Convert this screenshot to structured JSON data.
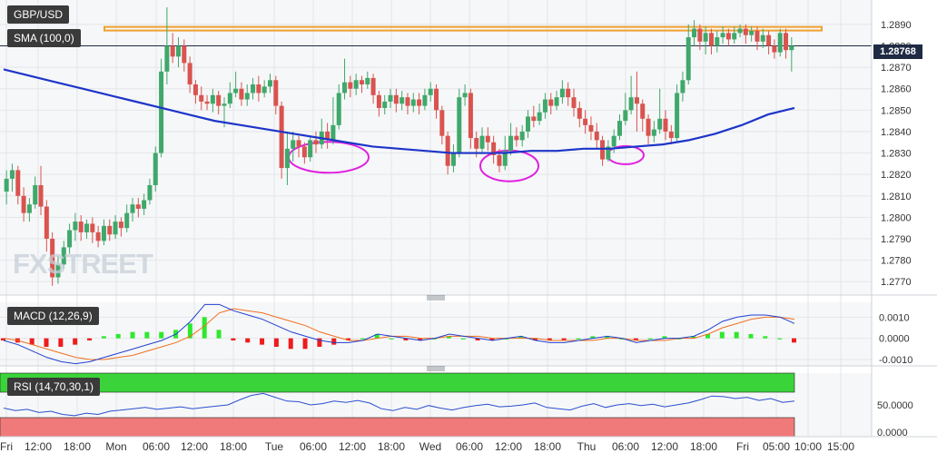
{
  "symbol": "GBP/USD",
  "indicator_sma": "SMA (100,0)",
  "indicator_macd": "MACD (12,26,9)",
  "indicator_rsi": "RSI (14,70,30,1)",
  "last_price": "1.28768",
  "watermark": "FXSTREET",
  "colors": {
    "up": "#3fa86b",
    "down": "#d9534f",
    "sma": "#1d35c9",
    "resistance": "#f0a030",
    "circles": "#e020e0",
    "macd_line": "#2040d0",
    "signal_line": "#f07020",
    "hist_up": "#2ee82e",
    "hist_down": "#ee1c1c",
    "rsi_line": "#2a4fd0",
    "rsi_over": "#3ad33a",
    "rsi_under": "#f07a7a"
  },
  "time_axis": [
    "Fri",
    "12:00",
    "18:00",
    "Mon",
    "06:00",
    "12:00",
    "18:00",
    "Tue",
    "06:00",
    "12:00",
    "18:00",
    "Wed",
    "06:00",
    "12:00",
    "18:00",
    "Thu",
    "06:00",
    "12:00",
    "18:00",
    "Fri",
    "05:00",
    "10:00",
    "15:00"
  ],
  "chart_data": [
    {
      "type": "candlestick",
      "title": "GBP/USD",
      "ylim": [
        1.2765,
        1.2898
      ],
      "y_ticks": [
        "1.2890",
        "1.2880",
        "1.2870",
        "1.2860",
        "1.2850",
        "1.2840",
        "1.2830",
        "1.2820",
        "1.2810",
        "1.2800",
        "1.2790",
        "1.2780",
        "1.2770"
      ],
      "series": [
        {
          "name": "SMA (100,0)",
          "values": [
            1.2869,
            1.2866,
            1.2863,
            1.286,
            1.2857,
            1.2854,
            1.2851,
            1.2848,
            1.2845,
            1.2843,
            1.2841,
            1.2839,
            1.2837,
            1.2835,
            1.2833,
            1.2832,
            1.2831,
            1.283,
            1.283,
            1.283,
            1.2831,
            1.2831,
            1.2832,
            1.2832,
            1.2833,
            1.2834,
            1.2836,
            1.2839,
            1.2843,
            1.2848,
            1.2851
          ]
        }
      ],
      "candles": [
        [
          1.2812,
          1.2818,
          1.2806,
          1.2822
        ],
        [
          1.2818,
          1.2822,
          1.2812,
          1.2825
        ],
        [
          1.2822,
          1.281,
          1.2806,
          1.2824
        ],
        [
          1.281,
          1.2802,
          1.2798,
          1.2814
        ],
        [
          1.2802,
          1.2806,
          1.2798,
          1.2809
        ],
        [
          1.2806,
          1.2815,
          1.2804,
          1.2819
        ],
        [
          1.2815,
          1.2805,
          1.2801,
          1.2824
        ],
        [
          1.2805,
          1.279,
          1.2784,
          1.2808
        ],
        [
          1.279,
          1.2772,
          1.2768,
          1.2793
        ],
        [
          1.2772,
          1.2778,
          1.2769,
          1.2782
        ],
        [
          1.2778,
          1.2786,
          1.2776,
          1.2789
        ],
        [
          1.2786,
          1.2794,
          1.2783,
          1.2797
        ],
        [
          1.2794,
          1.2798,
          1.2789,
          1.2802
        ],
        [
          1.2798,
          1.2793,
          1.2789,
          1.2801
        ],
        [
          1.2793,
          1.2797,
          1.279,
          1.2799
        ],
        [
          1.2797,
          1.2793,
          1.2788,
          1.28
        ],
        [
          1.2793,
          1.2789,
          1.2786,
          1.2796
        ],
        [
          1.2789,
          1.2796,
          1.2787,
          1.2799
        ],
        [
          1.2796,
          1.2792,
          1.2789,
          1.2799
        ],
        [
          1.2792,
          1.2798,
          1.279,
          1.2801
        ],
        [
          1.2798,
          1.2795,
          1.2791,
          1.28
        ],
        [
          1.2795,
          1.2802,
          1.2793,
          1.2806
        ],
        [
          1.2802,
          1.2806,
          1.2798,
          1.2809
        ],
        [
          1.2806,
          1.2804,
          1.28,
          1.2809
        ],
        [
          1.2804,
          1.2808,
          1.2801,
          1.2811
        ],
        [
          1.2808,
          1.2815,
          1.2806,
          1.2818
        ],
        [
          1.2815,
          1.283,
          1.2812,
          1.2833
        ],
        [
          1.283,
          1.2868,
          1.2828,
          1.2874
        ],
        [
          1.2868,
          1.288,
          1.2862,
          1.2898
        ],
        [
          1.288,
          1.2875,
          1.2872,
          1.2886
        ],
        [
          1.2875,
          1.288,
          1.287,
          1.2884
        ],
        [
          1.288,
          1.2872,
          1.2868,
          1.2883
        ],
        [
          1.2872,
          1.2862,
          1.2858,
          1.2875
        ],
        [
          1.2862,
          1.2857,
          1.2853,
          1.2864
        ],
        [
          1.2857,
          1.2854,
          1.285,
          1.2861
        ],
        [
          1.2854,
          1.2853,
          1.285,
          1.2857
        ],
        [
          1.2853,
          1.2857,
          1.2849,
          1.286
        ],
        [
          1.2857,
          1.2852,
          1.2848,
          1.2859
        ],
        [
          1.2852,
          1.2853,
          1.2842,
          1.2856
        ],
        [
          1.2853,
          1.2858,
          1.2851,
          1.2863
        ],
        [
          1.2858,
          1.286,
          1.2856,
          1.2868
        ],
        [
          1.286,
          1.2855,
          1.2852,
          1.2863
        ],
        [
          1.2855,
          1.2858,
          1.2852,
          1.2862
        ],
        [
          1.2858,
          1.2862,
          1.2855,
          1.2865
        ],
        [
          1.2862,
          1.2858,
          1.2854,
          1.2866
        ],
        [
          1.2858,
          1.2861,
          1.2856,
          1.2864
        ],
        [
          1.2861,
          1.2864,
          1.2858,
          1.2867
        ],
        [
          1.2864,
          1.2852,
          1.2848,
          1.2866
        ],
        [
          1.2852,
          1.2823,
          1.2818,
          1.2854
        ],
        [
          1.2823,
          1.2832,
          1.2815,
          1.284
        ],
        [
          1.2832,
          1.2836,
          1.2826,
          1.284
        ],
        [
          1.2836,
          1.2833,
          1.2828,
          1.2838
        ],
        [
          1.2833,
          1.2828,
          1.2825,
          1.2835
        ],
        [
          1.2828,
          1.2836,
          1.2826,
          1.2838
        ],
        [
          1.2836,
          1.2834,
          1.283,
          1.284
        ],
        [
          1.2834,
          1.284,
          1.2832,
          1.2846
        ],
        [
          1.284,
          1.2836,
          1.2832,
          1.2844
        ],
        [
          1.2836,
          1.2843,
          1.2834,
          1.2856
        ],
        [
          1.2843,
          1.2858,
          1.2841,
          1.2862
        ],
        [
          1.2858,
          1.2863,
          1.2855,
          1.2874
        ],
        [
          1.2863,
          1.286,
          1.2856,
          1.2866
        ],
        [
          1.286,
          1.2864,
          1.2857,
          1.2867
        ],
        [
          1.2864,
          1.2862,
          1.2858,
          1.2866
        ],
        [
          1.2862,
          1.2865,
          1.286,
          1.2868
        ],
        [
          1.2865,
          1.2857,
          1.2853,
          1.2867
        ],
        [
          1.2857,
          1.2851,
          1.2847,
          1.2859
        ],
        [
          1.2851,
          1.2854,
          1.2848,
          1.2857
        ],
        [
          1.2854,
          1.2857,
          1.2851,
          1.286
        ],
        [
          1.2857,
          1.2853,
          1.2849,
          1.286
        ],
        [
          1.2853,
          1.2856,
          1.285,
          1.2859
        ],
        [
          1.2856,
          1.2852,
          1.2848,
          1.2858
        ],
        [
          1.2852,
          1.2855,
          1.2849,
          1.2858
        ],
        [
          1.2855,
          1.2852,
          1.2848,
          1.2858
        ],
        [
          1.2852,
          1.2857,
          1.285,
          1.286
        ],
        [
          1.2857,
          1.286,
          1.2854,
          1.2863
        ],
        [
          1.286,
          1.285,
          1.2846,
          1.2862
        ],
        [
          1.285,
          1.2838,
          1.2834,
          1.2852
        ],
        [
          1.2838,
          1.2824,
          1.282,
          1.284
        ],
        [
          1.2824,
          1.283,
          1.2821,
          1.2834
        ],
        [
          1.283,
          1.2856,
          1.2828,
          1.286
        ],
        [
          1.2856,
          1.2858,
          1.2852,
          1.2862
        ],
        [
          1.2858,
          1.2837,
          1.2832,
          1.286
        ],
        [
          1.2837,
          1.2832,
          1.2828,
          1.284
        ],
        [
          1.2832,
          1.2838,
          1.283,
          1.2842
        ],
        [
          1.2838,
          1.2835,
          1.2831,
          1.2842
        ],
        [
          1.2835,
          1.2829,
          1.2825,
          1.2838
        ],
        [
          1.2829,
          1.2824,
          1.2821,
          1.2832
        ],
        [
          1.2824,
          1.2831,
          1.2822,
          1.2838
        ],
        [
          1.2831,
          1.2838,
          1.2829,
          1.2844
        ],
        [
          1.2838,
          1.2836,
          1.2833,
          1.2842
        ],
        [
          1.2836,
          1.284,
          1.2833,
          1.2843
        ],
        [
          1.284,
          1.2847,
          1.2837,
          1.285
        ],
        [
          1.2847,
          1.2845,
          1.2842,
          1.2852
        ],
        [
          1.2845,
          1.2849,
          1.2843,
          1.2853
        ],
        [
          1.2849,
          1.2855,
          1.2846,
          1.2858
        ],
        [
          1.2855,
          1.2852,
          1.2848,
          1.2858
        ],
        [
          1.2852,
          1.2856,
          1.285,
          1.2859
        ],
        [
          1.2856,
          1.286,
          1.2853,
          1.2864
        ],
        [
          1.286,
          1.2856,
          1.2852,
          1.2863
        ],
        [
          1.2856,
          1.2851,
          1.2847,
          1.286
        ],
        [
          1.2851,
          1.2846,
          1.2842,
          1.2854
        ],
        [
          1.2846,
          1.2843,
          1.2839,
          1.285
        ],
        [
          1.2843,
          1.284,
          1.2836,
          1.2847
        ],
        [
          1.284,
          1.2836,
          1.2832,
          1.2844
        ],
        [
          1.2836,
          1.2827,
          1.2824,
          1.2838
        ],
        [
          1.2827,
          1.2833,
          1.2826,
          1.2836
        ],
        [
          1.2833,
          1.2838,
          1.283,
          1.2841
        ],
        [
          1.2838,
          1.2845,
          1.2836,
          1.2848
        ],
        [
          1.2845,
          1.285,
          1.2843,
          1.2858
        ],
        [
          1.285,
          1.2856,
          1.2848,
          1.2866
        ],
        [
          1.2856,
          1.2853,
          1.284,
          1.2868
        ],
        [
          1.2853,
          1.2846,
          1.284,
          1.2855
        ],
        [
          1.2846,
          1.2838,
          1.2834,
          1.2848
        ],
        [
          1.2838,
          1.2841,
          1.2835,
          1.2845
        ],
        [
          1.2841,
          1.2846,
          1.2839,
          1.286
        ],
        [
          1.2846,
          1.284,
          1.2836,
          1.285
        ],
        [
          1.284,
          1.2837,
          1.2834,
          1.2843
        ],
        [
          1.2837,
          1.2858,
          1.2835,
          1.2862
        ],
        [
          1.2858,
          1.2864,
          1.2854,
          1.2868
        ],
        [
          1.2864,
          1.2884,
          1.2862,
          1.289
        ],
        [
          1.2884,
          1.2888,
          1.288,
          1.2892
        ],
        [
          1.2888,
          1.2882,
          1.2878,
          1.289
        ],
        [
          1.2882,
          1.2886,
          1.2876,
          1.2889
        ],
        [
          1.2886,
          1.288,
          1.2876,
          1.2888
        ],
        [
          1.288,
          1.2884,
          1.2877,
          1.2887
        ],
        [
          1.2884,
          1.2886,
          1.2881,
          1.2889
        ],
        [
          1.2886,
          1.2883,
          1.288,
          1.2888
        ],
        [
          1.2883,
          1.2886,
          1.2881,
          1.2889
        ],
        [
          1.2886,
          1.2888,
          1.2884,
          1.289
        ],
        [
          1.2888,
          1.2885,
          1.2881,
          1.289
        ],
        [
          1.2885,
          1.2887,
          1.2882,
          1.2889
        ],
        [
          1.2887,
          1.2882,
          1.2878,
          1.2889
        ],
        [
          1.2882,
          1.2885,
          1.2879,
          1.2888
        ],
        [
          1.2885,
          1.288,
          1.2876,
          1.2887
        ],
        [
          1.288,
          1.2877,
          1.2874,
          1.2883
        ],
        [
          1.2877,
          1.2886,
          1.2875,
          1.2888
        ],
        [
          1.2886,
          1.2878,
          1.2874,
          1.2888
        ],
        [
          1.2878,
          1.288,
          1.2868,
          1.2884
        ]
      ],
      "resistance_level": 1.2888,
      "marked_lows": [
        1.2828,
        1.2824,
        1.2829
      ]
    },
    {
      "type": "bar",
      "title": "MACD (12,26,9)",
      "ylim": [
        -0.0013,
        0.0017
      ],
      "y_ticks": [
        "0.0010",
        "0.0000",
        "-0.0010"
      ],
      "series": [
        {
          "name": "MACD",
          "values": [
            -0.0001,
            -0.0003,
            -0.0006,
            -0.0009,
            -0.0011,
            -0.0012,
            -0.0011,
            -0.0009,
            -0.0007,
            -0.0005,
            -0.0003,
            -0.0001,
            0.0002,
            0.0008,
            0.0016,
            0.0016,
            0.0013,
            0.0011,
            0.0009,
            0.0006,
            0.0003,
            0.0001,
            -0.0001,
            -0.0002,
            -0.0002,
            -0.0001,
            0.0002,
            0.0001,
            0.0,
            -0.0001,
            0.0,
            0.0002,
            0.0001,
            0.0,
            -0.0001,
            0.0,
            0.0001,
            -0.0001,
            -0.0002,
            -0.0002,
            -0.0001,
            0.0,
            0.0001,
            0.0,
            -0.0002,
            -0.0001,
            0.0,
            0.0,
            0.0001,
            0.0004,
            0.0008,
            0.001,
            0.0011,
            0.0011,
            0.001,
            0.0007
          ]
        },
        {
          "name": "Signal",
          "values": [
            0.0,
            -0.0001,
            -0.0003,
            -0.0005,
            -0.0007,
            -0.0009,
            -0.001,
            -0.001,
            -0.0009,
            -0.0008,
            -0.0006,
            -0.0004,
            -0.0002,
            0.0001,
            0.0006,
            0.0012,
            0.0014,
            0.0013,
            0.0012,
            0.001,
            0.0008,
            0.0006,
            0.0003,
            0.0001,
            -0.0001,
            -0.0001,
            0.0,
            0.0001,
            0.0001,
            0.0,
            0.0,
            0.0001,
            0.0001,
            0.0001,
            0.0,
            0.0,
            0.0,
            0.0,
            -0.0001,
            -0.0001,
            -0.0001,
            -0.0001,
            0.0,
            0.0,
            -0.0001,
            -0.0001,
            -0.0001,
            0.0,
            0.0,
            0.0002,
            0.0005,
            0.0007,
            0.0009,
            0.001,
            0.001,
            0.0009
          ]
        }
      ]
    },
    {
      "type": "line",
      "title": "RSI (14,70,30,1)",
      "ylim": [
        0,
        100
      ],
      "y_ticks": [
        "50.0000",
        "0.0000"
      ],
      "overbought": 70,
      "oversold": 30,
      "series": [
        {
          "name": "RSI",
          "values": [
            45,
            41,
            43,
            38,
            40,
            35,
            33,
            37,
            35,
            40,
            42,
            44,
            46,
            43,
            45,
            47,
            44,
            46,
            48,
            50,
            58,
            65,
            68,
            62,
            56,
            55,
            50,
            52,
            56,
            54,
            57,
            53,
            44,
            41,
            46,
            43,
            49,
            45,
            42,
            46,
            49,
            51,
            47,
            48,
            50,
            53,
            46,
            44,
            42,
            48,
            52,
            46,
            50,
            52,
            49,
            51,
            47,
            50,
            53,
            58,
            64,
            63,
            60,
            62,
            57,
            60,
            54,
            56
          ]
        }
      ]
    }
  ]
}
